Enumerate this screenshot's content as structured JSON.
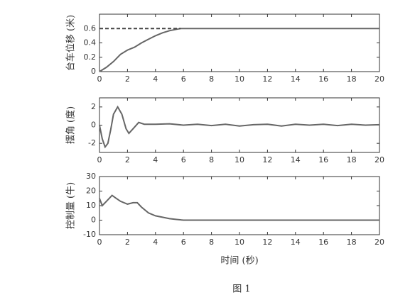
{
  "chart_data": [
    {
      "type": "line",
      "ylabel": "台车位移 (米)",
      "x": [
        0,
        0.5,
        1,
        1.5,
        2,
        2.5,
        3,
        3.5,
        4,
        4.5,
        5,
        5.5,
        5.8,
        20
      ],
      "series": [
        {
          "color": "#666666",
          "style": "solid",
          "values": [
            0,
            0.06,
            0.14,
            0.24,
            0.3,
            0.34,
            0.4,
            0.45,
            0.5,
            0.54,
            0.57,
            0.59,
            0.6,
            0.6
          ]
        },
        {
          "color": "#444444",
          "style": "dashed",
          "values": [
            0.6,
            0.6,
            0.6,
            0.6,
            0.6,
            0.6,
            0.6,
            0.6,
            0.6,
            0.6,
            0.6,
            0.6,
            0.6,
            null
          ]
        }
      ],
      "xlim": [
        0,
        20
      ],
      "xticks": [
        0,
        2,
        4,
        6,
        8,
        10,
        12,
        14,
        16,
        18,
        20
      ],
      "ylim": [
        0,
        0.8
      ],
      "yticks": [
        0,
        0.2,
        0.4,
        0.6
      ]
    },
    {
      "type": "line",
      "ylabel": "摆角 (度)",
      "x": [
        0,
        0.2,
        0.4,
        0.6,
        0.8,
        1,
        1.3,
        1.6,
        1.9,
        2.1,
        2.4,
        2.8,
        3.2,
        4,
        5,
        6,
        7,
        8,
        9,
        10,
        11,
        12,
        13,
        14,
        15,
        16,
        17,
        18,
        19,
        20
      ],
      "series": [
        {
          "color": "#666666",
          "style": "solid",
          "values": [
            0,
            -1.5,
            -2.4,
            -2,
            -0.5,
            1.2,
            2,
            1.2,
            -0.4,
            -0.9,
            -0.4,
            0.3,
            0.1,
            0.1,
            0.15,
            0,
            0.1,
            -0.05,
            0.1,
            -0.1,
            0.05,
            0.1,
            -0.1,
            0.1,
            0,
            0.1,
            -0.05,
            0.1,
            0,
            0.05
          ]
        }
      ],
      "xlim": [
        0,
        20
      ],
      "xticks": [
        0,
        2,
        4,
        6,
        8,
        10,
        12,
        14,
        16,
        18,
        20
      ],
      "ylim": [
        -3,
        3
      ],
      "yticks": [
        -2,
        0,
        2
      ]
    },
    {
      "type": "line",
      "ylabel": "控制量 (牛)",
      "xlabel": "时间 (秒)",
      "x": [
        0,
        0.2,
        0.5,
        0.9,
        1.2,
        1.5,
        2,
        2.4,
        2.7,
        3,
        3.5,
        4,
        4.5,
        5,
        5.5,
        6,
        20
      ],
      "series": [
        {
          "color": "#666666",
          "style": "solid",
          "values": [
            15,
            10,
            13,
            17,
            15,
            13,
            11,
            12,
            12,
            9,
            5,
            3,
            2,
            1,
            0.5,
            0,
            0
          ]
        }
      ],
      "xlim": [
        0,
        20
      ],
      "xticks": [
        0,
        2,
        4,
        6,
        8,
        10,
        12,
        14,
        16,
        18,
        20
      ],
      "ylim": [
        -10,
        30
      ],
      "yticks": [
        -10,
        0,
        10,
        20,
        30
      ]
    }
  ],
  "caption": "图 1"
}
